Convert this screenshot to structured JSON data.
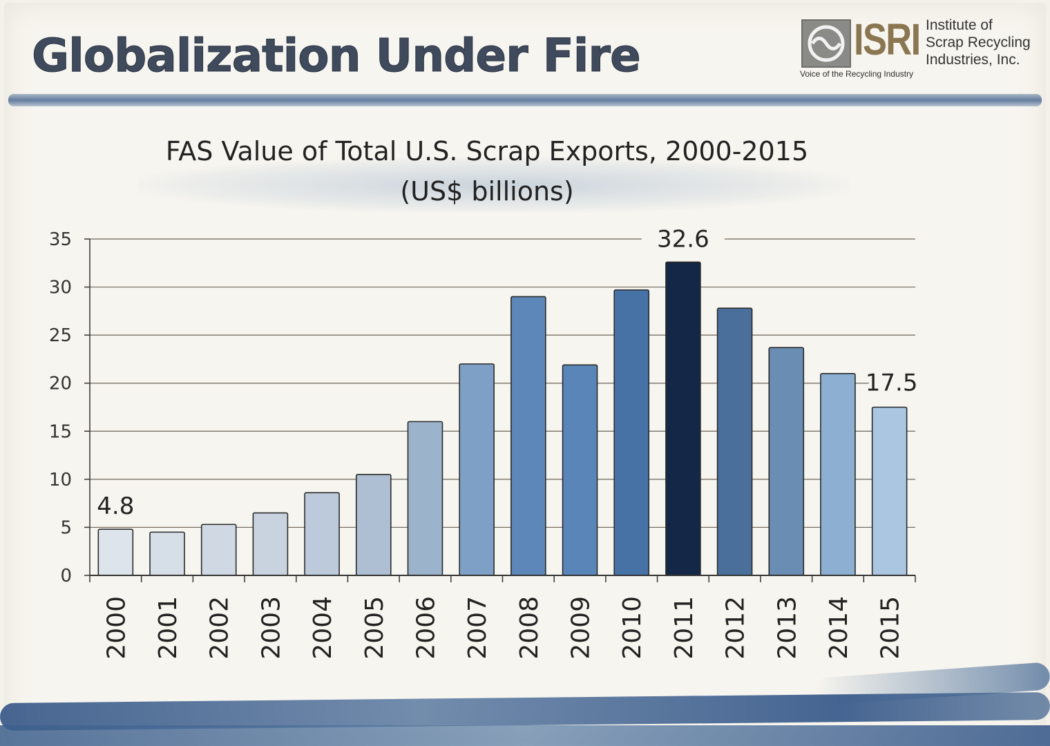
{
  "slide": {
    "title": "Globalization Under Fire"
  },
  "logo": {
    "wordmark": "ISRI",
    "tagline": "Voice of the Recycling Industry",
    "org_line1": "Institute of",
    "org_line2": "Scrap Recycling",
    "org_line3": "Industries, Inc."
  },
  "chart_data": {
    "type": "bar",
    "title_line1": "FAS Value of Total U.S. Scrap Exports, 2000-2015",
    "title_line2": "(US$ billions)",
    "categories": [
      "2000",
      "2001",
      "2002",
      "2003",
      "2004",
      "2005",
      "2006",
      "2007",
      "2008",
      "2009",
      "2010",
      "2011",
      "2012",
      "2013",
      "2014",
      "2015"
    ],
    "values": [
      4.8,
      4.5,
      5.3,
      6.5,
      8.6,
      10.5,
      16.0,
      22.0,
      29.0,
      21.9,
      29.7,
      32.6,
      27.8,
      23.7,
      21.0,
      17.5
    ],
    "colors": [
      "#dde4eb",
      "#d6dee7",
      "#d0d9e3",
      "#c8d3df",
      "#bccadb",
      "#aebfd3",
      "#9cb3cc",
      "#7ea0c6",
      "#5d86b9",
      "#5a85b8",
      "#4672a6",
      "#142746",
      "#4a6f9b",
      "#6a8db3",
      "#8db0d2",
      "#aac6e1"
    ],
    "labels": {
      "2000": "4.8",
      "2011": "32.6",
      "2015": "17.5"
    },
    "ylim": [
      0,
      35
    ],
    "yticks": [
      0,
      5,
      10,
      15,
      20,
      25,
      30,
      35
    ],
    "xlabel": "",
    "ylabel": "",
    "grid": true
  }
}
